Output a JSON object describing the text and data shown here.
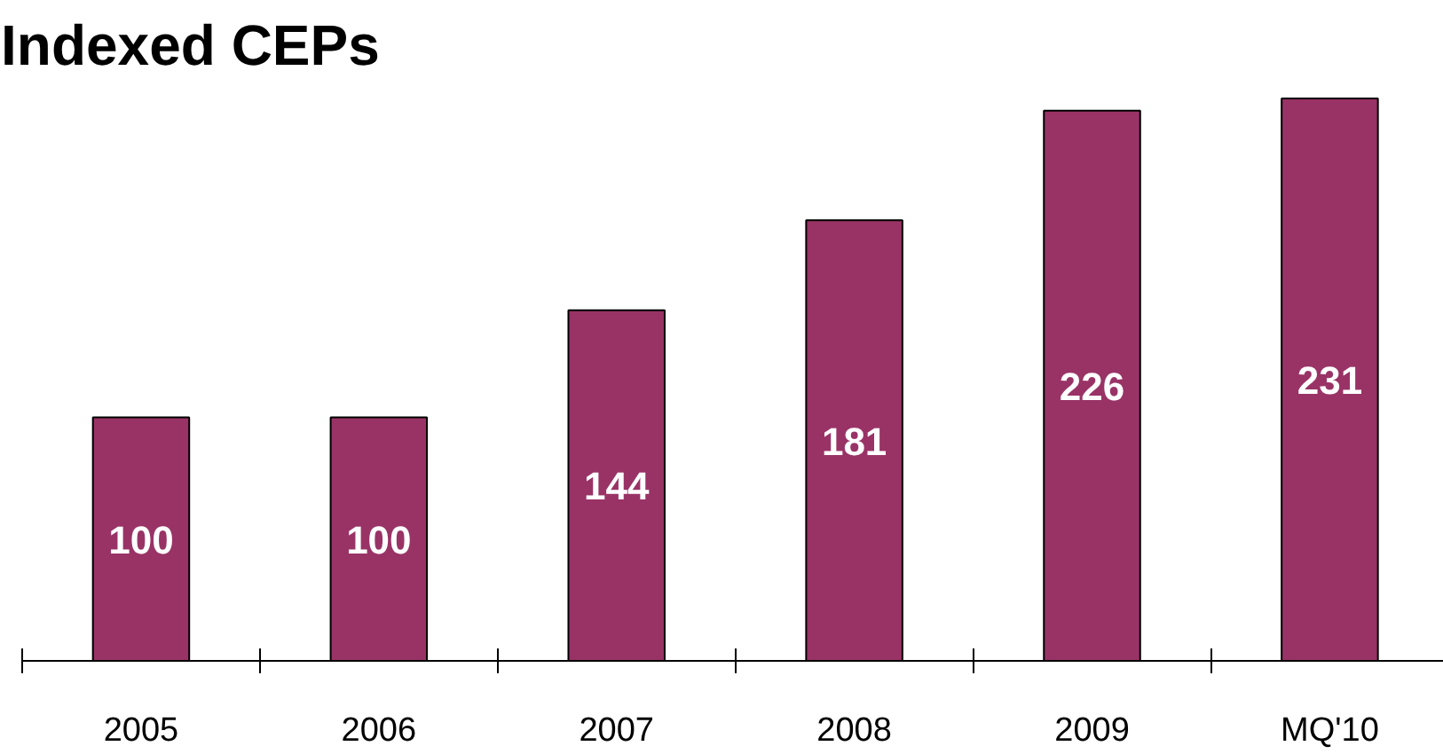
{
  "chart_data": {
    "type": "bar",
    "title": "Indexed CEPs",
    "categories": [
      "2005",
      "2006",
      "2007",
      "2008",
      "2009",
      "MQ'10"
    ],
    "values": [
      100,
      100,
      144,
      181,
      226,
      231
    ],
    "color": "#993366",
    "data_labels": true,
    "grid": false
  }
}
